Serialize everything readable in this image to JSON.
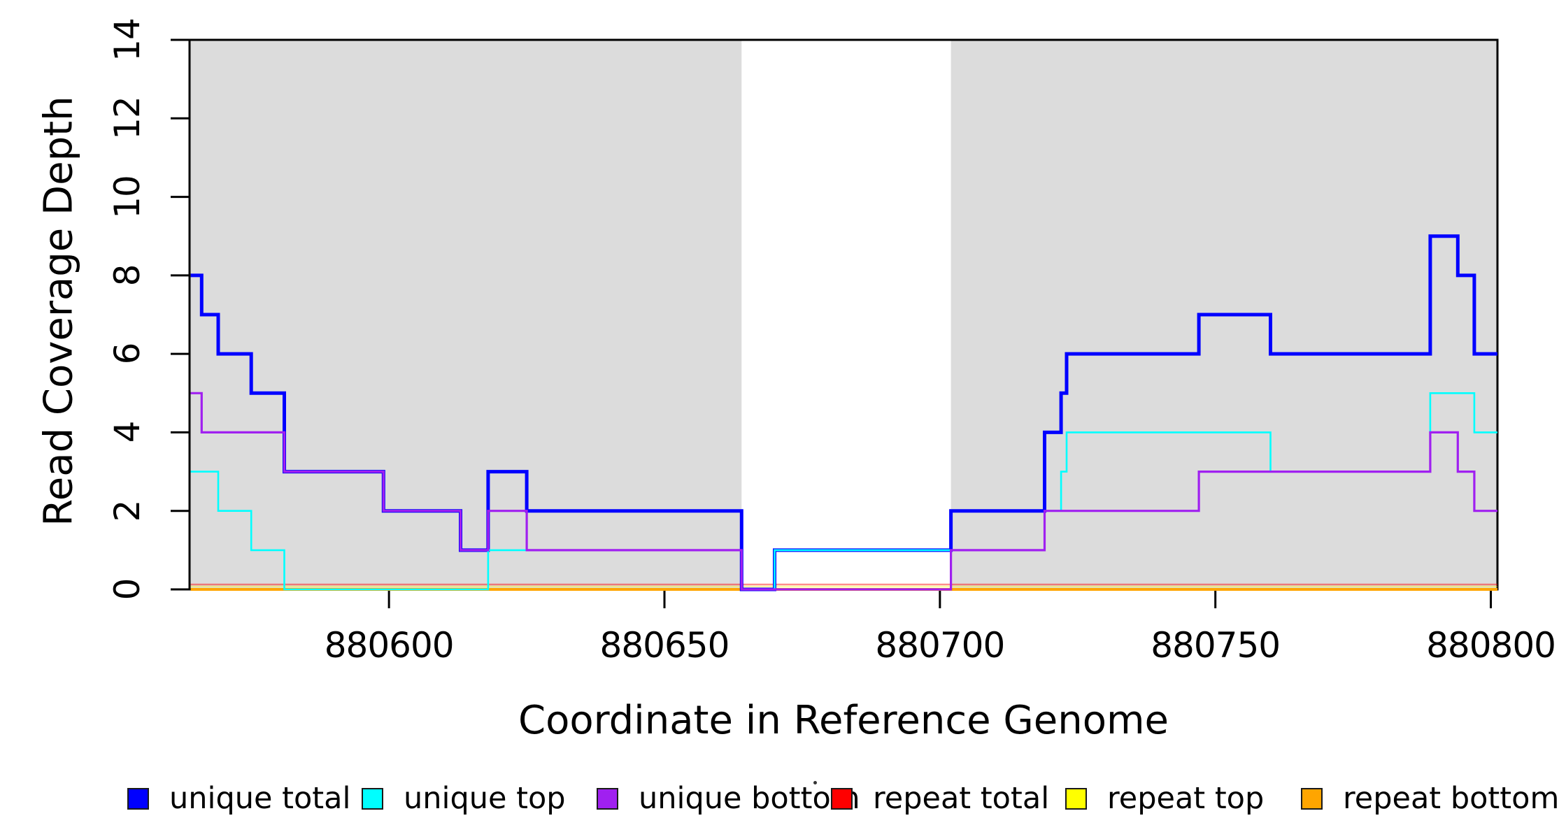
{
  "figure": {
    "x_axis_title": "Coordinate in Reference Genome",
    "y_axis_title": "Read Coverage Depth"
  },
  "legend": {
    "items": [
      {
        "label": "unique total",
        "color": "#0000FF"
      },
      {
        "label": "unique top",
        "color": "#00FFFF"
      },
      {
        "label": "unique bottom",
        "color": "#A020F0"
      },
      {
        "label": "repeat total",
        "color": "#FF0000"
      },
      {
        "label": "repeat top",
        "color": "#FFFF00"
      },
      {
        "label": "repeat bottom",
        "color": "#FFA500"
      }
    ]
  },
  "chart_data": {
    "type": "line",
    "subtype": "step-after-coverage",
    "title": "",
    "xlabel": "Coordinate in Reference Genome",
    "ylabel": "Read Coverage Depth",
    "xlim": [
      880563.8,
      880801.2
    ],
    "ylim": [
      0,
      14
    ],
    "x_ticks": [
      880600,
      880650,
      880700,
      880750,
      880800
    ],
    "x_tick_labels": [
      "880600",
      "880650",
      "880700",
      "880750",
      "880800"
    ],
    "y_ticks": [
      0,
      2,
      4,
      6,
      8,
      10,
      12,
      14
    ],
    "y_tick_labels": [
      "0",
      "2",
      "4",
      "6",
      "8",
      "10",
      "12",
      "14"
    ],
    "grid": false,
    "legend_position": "below",
    "background_color": "#FFFFFF",
    "highlight_bands": [
      {
        "x_start": 880563.8,
        "x_end": 880664,
        "color": "#DCDCDC"
      },
      {
        "x_start": 880702,
        "x_end": 880801.2,
        "color": "#DCDCDC"
      }
    ],
    "series": [
      {
        "name": "unique total",
        "color": "#0000FF",
        "steps": [
          [
            880564,
            8
          ],
          [
            880566,
            7
          ],
          [
            880569,
            6
          ],
          [
            880575,
            5
          ],
          [
            880581,
            3
          ],
          [
            880599,
            2
          ],
          [
            880613,
            1
          ],
          [
            880618,
            3
          ],
          [
            880625,
            2
          ],
          [
            880664,
            0
          ],
          [
            880670,
            1
          ],
          [
            880702,
            2
          ],
          [
            880719,
            4
          ],
          [
            880722,
            5
          ],
          [
            880723,
            6
          ],
          [
            880747,
            7
          ],
          [
            880760,
            6
          ],
          [
            880789,
            9
          ],
          [
            880794,
            8
          ],
          [
            880797,
            6
          ]
        ]
      },
      {
        "name": "unique top",
        "color": "#00FFFF",
        "steps": [
          [
            880564,
            3
          ],
          [
            880569,
            2
          ],
          [
            880575,
            1
          ],
          [
            880581,
            0
          ],
          [
            880618,
            1
          ],
          [
            880664,
            0
          ],
          [
            880670,
            1
          ],
          [
            880719,
            2
          ],
          [
            880722,
            3
          ],
          [
            880723,
            4
          ],
          [
            880760,
            3
          ],
          [
            880789,
            5
          ],
          [
            880797,
            4
          ]
        ]
      },
      {
        "name": "unique bottom",
        "color": "#A020F0",
        "steps": [
          [
            880564,
            5
          ],
          [
            880566,
            4
          ],
          [
            880581,
            3
          ],
          [
            880599,
            2
          ],
          [
            880613,
            1
          ],
          [
            880618,
            2
          ],
          [
            880625,
            1
          ],
          [
            880664,
            0
          ],
          [
            880702,
            1
          ],
          [
            880719,
            2
          ],
          [
            880747,
            3
          ],
          [
            880789,
            4
          ],
          [
            880794,
            3
          ],
          [
            880797,
            2
          ]
        ]
      },
      {
        "name": "repeat total",
        "color": "#FF0000",
        "steps": [
          [
            880564,
            0
          ]
        ]
      },
      {
        "name": "repeat top",
        "color": "#FFFF00",
        "steps": [
          [
            880564,
            0
          ]
        ]
      },
      {
        "name": "repeat bottom",
        "color": "#FFA500",
        "steps": [
          [
            880564,
            0
          ]
        ]
      }
    ],
    "draw_order": [
      "repeat total",
      "repeat top",
      "repeat bottom",
      "unique total",
      "unique top",
      "unique bottom"
    ]
  }
}
